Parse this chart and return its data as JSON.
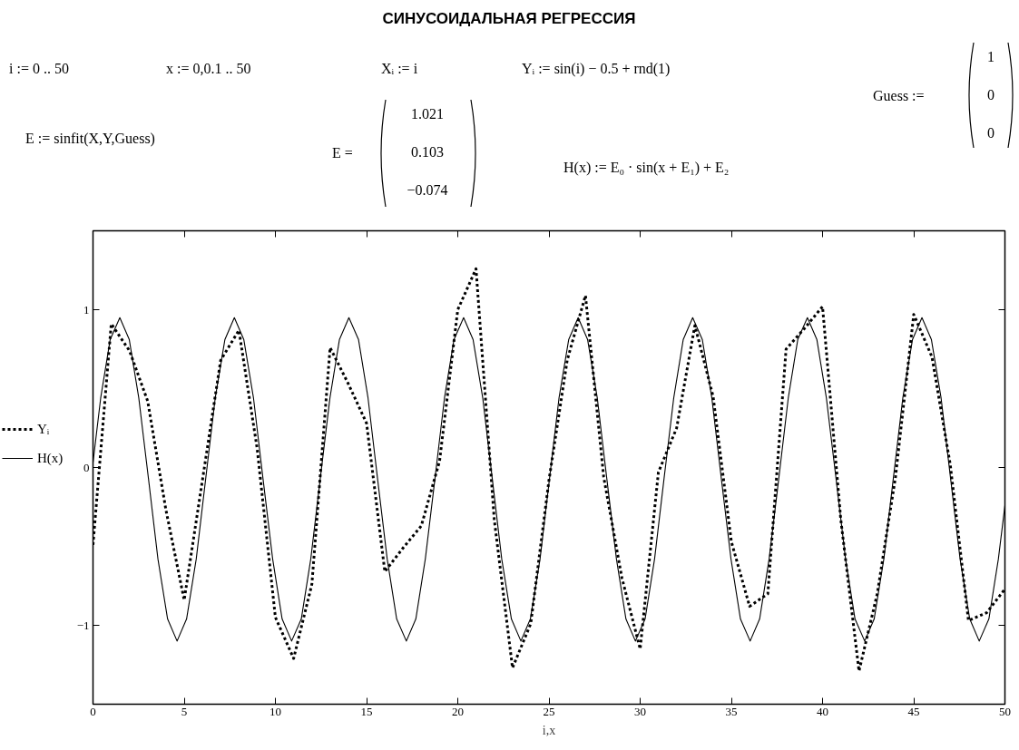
{
  "chart_data": {
    "type": "line",
    "title": "СИНУСОИДАЛЬНАЯ РЕГРЕССИЯ",
    "xlabel": "i,x",
    "annotations": [
      "i := 0 .. 50",
      "x := 0,0.1 .. 50",
      "Xᵢ := i",
      "Yᵢ := sin(i) − 0.5 + rnd(1)",
      "Guess :=",
      "1",
      "0",
      "0",
      "E := sinfit(X,Y,Guess)",
      "E =",
      "1.021",
      "0.103",
      "−0.074",
      "H(x) := E₀ · sin(x + E₁) + E₂"
    ],
    "xlim": [
      0,
      50
    ],
    "ylim": [
      -1.5,
      1.5
    ],
    "xticks": [
      0,
      5,
      10,
      15,
      20,
      25,
      30,
      35,
      40,
      45,
      50
    ],
    "yticks": [
      -1,
      0,
      1
    ],
    "grid": false,
    "legend": "left",
    "series": [
      {
        "name": "Yᵢ",
        "color": "#000000",
        "line_style": "dotted",
        "x": [
          0,
          1,
          2,
          3,
          4,
          5,
          6,
          7,
          8,
          9,
          10,
          11,
          12,
          13,
          14,
          15,
          16,
          17,
          18,
          19,
          20,
          21,
          22,
          23,
          24,
          25,
          26,
          27,
          28,
          29,
          30,
          31,
          32,
          33,
          34,
          35,
          36,
          37,
          38,
          39,
          40,
          41,
          42,
          43,
          44,
          45,
          46,
          47,
          48,
          49,
          50
        ],
        "values": [
          -0.49,
          0.91,
          0.74,
          0.42,
          -0.27,
          -0.84,
          -0.08,
          0.68,
          0.87,
          0.12,
          -0.95,
          -1.21,
          -0.74,
          0.76,
          0.53,
          0.28,
          -0.66,
          -0.51,
          -0.37,
          0.04,
          1.0,
          1.26,
          -0.33,
          -1.27,
          -0.99,
          -0.08,
          0.68,
          1.09,
          -0.06,
          -0.7,
          -1.15,
          -0.03,
          0.25,
          0.9,
          0.45,
          -0.47,
          -0.88,
          -0.8,
          0.75,
          0.88,
          1.02,
          -0.33,
          -1.29,
          -0.8,
          -0.06,
          0.97,
          0.7,
          0.02,
          -0.97,
          -0.92,
          -0.77
        ]
      },
      {
        "name": "H(x)",
        "color": "#000000",
        "line_style": "solid",
        "x": [
          0,
          0.42,
          0.94,
          1.47,
          1.99,
          2.51,
          3.04,
          3.56,
          4.09,
          4.61,
          5.13,
          5.66,
          6.18,
          6.7,
          7.23,
          7.75,
          8.27,
          8.8,
          9.32,
          9.85,
          10.37,
          10.89,
          11.42,
          11.94,
          12.46,
          12.99,
          13.51,
          14.03,
          14.56,
          15.08,
          15.6,
          16.13,
          16.65,
          17.18,
          17.7,
          18.22,
          18.75,
          19.27,
          19.79,
          20.32,
          20.84,
          21.37,
          21.89,
          22.41,
          22.94,
          23.46,
          23.98,
          24.51,
          25.03,
          25.55,
          26.08,
          26.6,
          27.12,
          27.65,
          28.17,
          28.7,
          29.22,
          29.74,
          30.27,
          30.79,
          31.31,
          31.84,
          32.36,
          32.88,
          33.41,
          33.93,
          34.45,
          34.98,
          35.5,
          36.03,
          36.55,
          37.07,
          37.6,
          38.12,
          38.64,
          39.17,
          39.69,
          40.21,
          40.74,
          41.26,
          41.78,
          42.31,
          42.83,
          43.36,
          43.88,
          44.4,
          44.93,
          45.45,
          45.97,
          46.5,
          47.02,
          47.54,
          48.07,
          48.59,
          49.12,
          49.64,
          50
        ],
        "values": [
          0.03,
          0.44,
          0.81,
          0.95,
          0.81,
          0.44,
          -0.07,
          -0.58,
          -0.96,
          -1.1,
          -0.96,
          -0.58,
          -0.07,
          0.44,
          0.81,
          0.95,
          0.81,
          0.44,
          -0.07,
          -0.58,
          -0.96,
          -1.1,
          -0.96,
          -0.58,
          -0.07,
          0.44,
          0.81,
          0.95,
          0.81,
          0.44,
          -0.07,
          -0.58,
          -0.96,
          -1.1,
          -0.96,
          -0.58,
          -0.07,
          0.44,
          0.81,
          0.95,
          0.81,
          0.44,
          -0.07,
          -0.58,
          -0.96,
          -1.1,
          -0.96,
          -0.58,
          -0.07,
          0.44,
          0.81,
          0.95,
          0.81,
          0.44,
          -0.07,
          -0.58,
          -0.96,
          -1.1,
          -0.96,
          -0.58,
          -0.07,
          0.44,
          0.81,
          0.95,
          0.81,
          0.44,
          -0.07,
          -0.58,
          -0.96,
          -1.1,
          -0.96,
          -0.58,
          -0.07,
          0.44,
          0.81,
          0.95,
          0.81,
          0.44,
          -0.07,
          -0.58,
          -0.96,
          -1.1,
          -0.96,
          -0.58,
          -0.07,
          0.44,
          0.81,
          0.95,
          0.81,
          0.44,
          -0.07,
          -0.58,
          -0.96,
          -1.1,
          -0.96,
          -0.58,
          -0.24
        ]
      }
    ]
  }
}
